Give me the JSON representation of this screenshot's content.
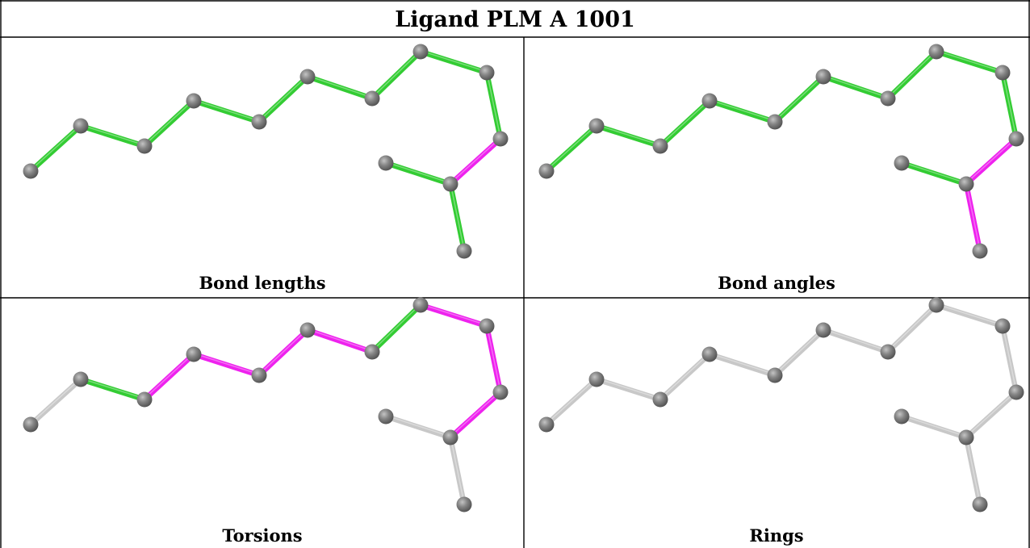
{
  "title": "Ligand PLM A 1001",
  "colors": {
    "pass": "#33cc33",
    "outlier": "#ee22ee",
    "not_assessed": "#c8c8c8",
    "atom": "#7a7a7a"
  },
  "atoms": [
    "C1",
    "C2",
    "C3",
    "C4",
    "C5",
    "C6",
    "C7",
    "C8",
    "C9",
    "C10",
    "C11",
    "C12",
    "O13"
  ],
  "bonds": [
    [
      "C1",
      "C2"
    ],
    [
      "C2",
      "C3"
    ],
    [
      "C3",
      "C4"
    ],
    [
      "C4",
      "C5"
    ],
    [
      "C5",
      "C6"
    ],
    [
      "C6",
      "C7"
    ],
    [
      "C7",
      "C8"
    ],
    [
      "C8",
      "C9"
    ],
    [
      "C9",
      "C10"
    ],
    [
      "C10",
      "C11"
    ],
    [
      "C11",
      "C12"
    ],
    [
      "C11",
      "O13"
    ]
  ],
  "panels": [
    {
      "caption": "Bond lengths",
      "bond_status": [
        "pass",
        "pass",
        "pass",
        "pass",
        "pass",
        "pass",
        "pass",
        "pass",
        "pass",
        "outlier",
        "pass",
        "pass"
      ]
    },
    {
      "caption": "Bond angles",
      "bond_status": [
        "pass",
        "pass",
        "pass",
        "pass",
        "pass",
        "pass",
        "pass",
        "pass",
        "pass",
        "outlier",
        "pass",
        "outlier"
      ]
    },
    {
      "caption": "Torsions",
      "bond_status": [
        "not_assessed",
        "pass",
        "outlier",
        "outlier",
        "outlier",
        "outlier",
        "pass",
        "outlier",
        "outlier",
        "outlier",
        "not_assessed",
        "not_assessed"
      ]
    },
    {
      "caption": "Rings",
      "bond_status": [
        "not_assessed",
        "not_assessed",
        "not_assessed",
        "not_assessed",
        "not_assessed",
        "not_assessed",
        "not_assessed",
        "not_assessed",
        "not_assessed",
        "not_assessed",
        "not_assessed",
        "not_assessed"
      ]
    }
  ]
}
